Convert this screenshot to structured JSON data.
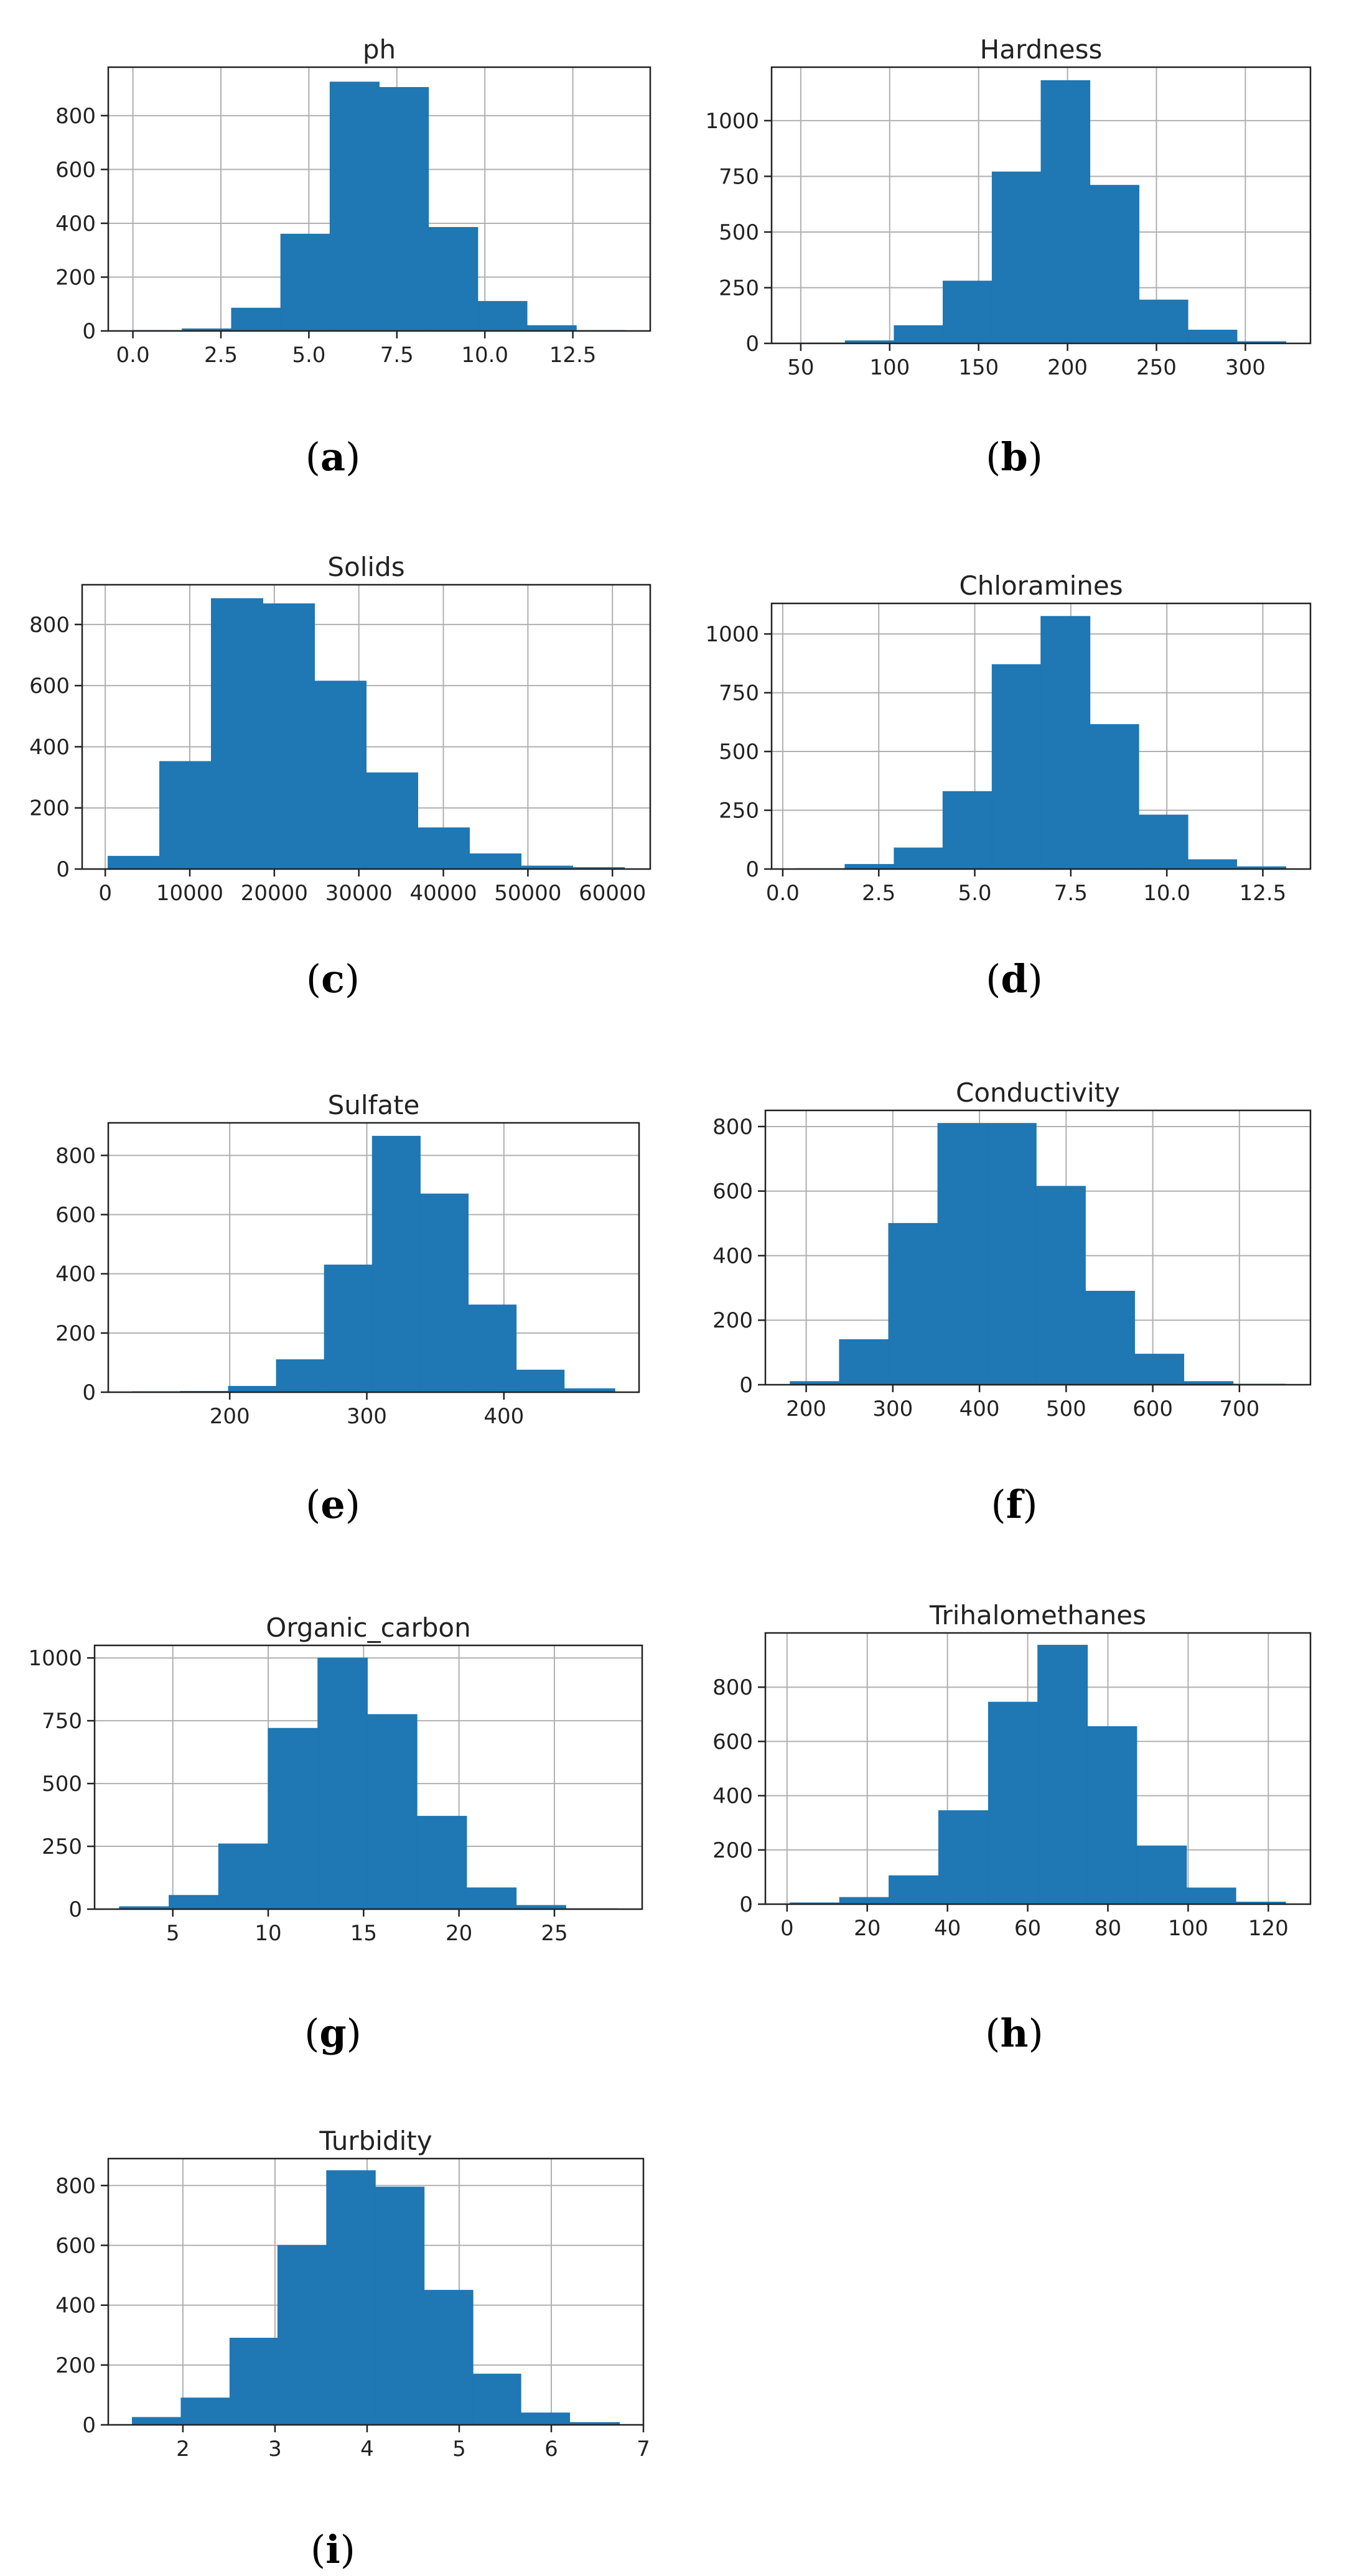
{
  "figure": {
    "background": "#ffffff",
    "bar_color": "#1f77b4"
  },
  "chart_data": [
    {
      "id": "ph",
      "type": "bar",
      "title": "ph",
      "label": "(a)",
      "label_letter": "a",
      "bin_edges": [
        0,
        1.4,
        2.8,
        4.2,
        5.6,
        7.0,
        8.4,
        9.8,
        11.2,
        12.6,
        14.0
      ],
      "values": [
        2,
        8,
        85,
        360,
        925,
        905,
        385,
        110,
        20,
        2
      ],
      "xlim": [
        -0.7,
        14.7
      ],
      "ylim": [
        0,
        980
      ],
      "xticks": [
        0,
        2.5,
        5,
        7.5,
        10,
        12.5
      ],
      "xtick_labels": [
        "0.0",
        "2.5",
        "5.0",
        "7.5",
        "10.0",
        "12.5"
      ],
      "yticks": [
        0,
        200,
        400,
        600,
        800
      ],
      "ytick_labels": [
        "0",
        "200",
        "400",
        "600",
        "800"
      ]
    },
    {
      "id": "hardness",
      "type": "bar",
      "title": "Hardness",
      "label": "(b)",
      "label_letter": "b",
      "bin_edges": [
        47.4,
        75,
        102.5,
        130,
        157.6,
        185.1,
        212.6,
        240.2,
        267.7,
        295.3,
        322.8
      ],
      "values": [
        2,
        12,
        80,
        280,
        770,
        1180,
        710,
        195,
        60,
        8
      ],
      "xlim": [
        33.6,
        336.6
      ],
      "ylim": [
        0,
        1240
      ],
      "xticks": [
        50,
        100,
        150,
        200,
        250,
        300
      ],
      "xtick_labels": [
        "50",
        "100",
        "150",
        "200",
        "250",
        "300"
      ],
      "yticks": [
        0,
        250,
        500,
        750,
        1000
      ],
      "ytick_labels": [
        "0",
        "250",
        "500",
        "750",
        "1000"
      ]
    },
    {
      "id": "solids",
      "type": "bar",
      "title": "Solids",
      "label": "(c)",
      "label_letter": "c",
      "bin_edges": [
        320,
        6430,
        12540,
        18650,
        24760,
        30870,
        36980,
        43090,
        49200,
        55310,
        61420
      ],
      "values": [
        42,
        352,
        885,
        868,
        615,
        315,
        135,
        50,
        10,
        5
      ],
      "xlim": [
        -2735,
        64475
      ],
      "ylim": [
        0,
        930
      ],
      "xticks": [
        0,
        10000,
        20000,
        30000,
        40000,
        50000,
        60000
      ],
      "xtick_labels": [
        "0",
        "10000",
        "20000",
        "30000",
        "40000",
        "50000",
        "60000"
      ],
      "yticks": [
        0,
        200,
        400,
        600,
        800
      ],
      "ytick_labels": [
        "0",
        "200",
        "400",
        "600",
        "800"
      ]
    },
    {
      "id": "chloramines",
      "type": "bar",
      "title": "Chloramines",
      "label": "(d)",
      "label_letter": "d",
      "bin_edges": [
        0.35,
        1.62,
        2.9,
        4.17,
        5.45,
        6.72,
        8.0,
        9.27,
        10.55,
        11.82,
        13.1
      ],
      "values": [
        2,
        20,
        90,
        330,
        870,
        1075,
        615,
        230,
        40,
        10
      ],
      "xlim": [
        -0.29,
        13.74
      ],
      "ylim": [
        0,
        1130
      ],
      "xticks": [
        0,
        2.5,
        5,
        7.5,
        10,
        12.5
      ],
      "xtick_labels": [
        "0.0",
        "2.5",
        "5.0",
        "7.5",
        "10.0",
        "12.5"
      ],
      "yticks": [
        0,
        250,
        500,
        750,
        1000
      ],
      "ytick_labels": [
        "0",
        "250",
        "500",
        "750",
        "1000"
      ]
    },
    {
      "id": "sulfate",
      "type": "bar",
      "title": "Sulfate",
      "label": "(e)",
      "label_letter": "e",
      "bin_edges": [
        129,
        164,
        199,
        234,
        269,
        304,
        339,
        374,
        409,
        444,
        481
      ],
      "values": [
        2,
        3,
        20,
        110,
        430,
        865,
        670,
        295,
        75,
        12
      ],
      "xlim": [
        111.4,
        498.6
      ],
      "ylim": [
        0,
        910
      ],
      "xticks": [
        200,
        300,
        400
      ],
      "xtick_labels": [
        "200",
        "300",
        "400"
      ],
      "yticks": [
        0,
        200,
        400,
        600,
        800
      ],
      "ytick_labels": [
        "0",
        "200",
        "400",
        "600",
        "800"
      ]
    },
    {
      "id": "conductivity",
      "type": "bar",
      "title": "Conductivity",
      "label": "(f)",
      "label_letter": "f",
      "bin_edges": [
        181.5,
        238.3,
        295.1,
        351.9,
        408.7,
        465.5,
        522.3,
        579.1,
        635.9,
        692.7,
        753.3
      ],
      "values": [
        10,
        140,
        500,
        810,
        810,
        615,
        290,
        95,
        10,
        2
      ],
      "xlim": [
        152.9,
        782
      ],
      "ylim": [
        0,
        850
      ],
      "xticks": [
        200,
        300,
        400,
        500,
        600,
        700
      ],
      "xtick_labels": [
        "200",
        "300",
        "400",
        "500",
        "600",
        "700"
      ],
      "yticks": [
        0,
        200,
        400,
        600,
        800
      ],
      "ytick_labels": [
        "0",
        "200",
        "400",
        "600",
        "800"
      ]
    },
    {
      "id": "organic_carbon",
      "type": "bar",
      "title": "Organic_carbon",
      "label": "(g)",
      "label_letter": "g",
      "bin_edges": [
        2.2,
        4.8,
        7.4,
        10.0,
        12.6,
        15.2,
        17.8,
        20.4,
        23.0,
        25.6,
        28.3
      ],
      "values": [
        10,
        55,
        260,
        720,
        1000,
        775,
        370,
        85,
        15,
        2
      ],
      "xlim": [
        0.9,
        29.6
      ],
      "ylim": [
        0,
        1050
      ],
      "xticks": [
        5,
        10,
        15,
        20,
        25
      ],
      "xtick_labels": [
        "5",
        "10",
        "15",
        "20",
        "25"
      ],
      "yticks": [
        0,
        250,
        500,
        750,
        1000
      ],
      "ytick_labels": [
        "0",
        "250",
        "500",
        "750",
        "1000"
      ]
    },
    {
      "id": "trihalomethanes",
      "type": "bar",
      "title": "Trihalomethanes",
      "label": "(h)",
      "label_letter": "h",
      "bin_edges": [
        0.74,
        13.1,
        25.4,
        37.8,
        50.2,
        62.5,
        74.9,
        87.2,
        99.6,
        111.9,
        124.3
      ],
      "values": [
        5,
        25,
        105,
        345,
        745,
        955,
        655,
        215,
        60,
        8
      ],
      "xlim": [
        -5.4,
        130.5
      ],
      "ylim": [
        0,
        1000
      ],
      "xticks": [
        0,
        20,
        40,
        60,
        80,
        100,
        120
      ],
      "xtick_labels": [
        "0",
        "20",
        "40",
        "60",
        "80",
        "100",
        "120"
      ],
      "yticks": [
        0,
        200,
        400,
        600,
        800
      ],
      "ytick_labels": [
        "0",
        "200",
        "400",
        "600",
        "800"
      ]
    },
    {
      "id": "turbidity",
      "type": "bar",
      "title": "Turbidity",
      "label": "(i)",
      "label_letter": "i",
      "bin_edges": [
        1.45,
        1.98,
        2.51,
        3.03,
        3.56,
        4.09,
        4.62,
        5.15,
        5.67,
        6.2,
        6.74
      ],
      "values": [
        25,
        90,
        290,
        600,
        850,
        795,
        450,
        170,
        40,
        8
      ],
      "xlim": [
        1.19,
        7.0
      ],
      "ylim": [
        0,
        890
      ],
      "xticks": [
        2,
        3,
        4,
        5,
        6,
        7
      ],
      "xtick_labels": [
        "2",
        "3",
        "4",
        "5",
        "6",
        "7"
      ],
      "yticks": [
        0,
        200,
        400,
        600,
        800
      ],
      "ytick_labels": [
        "0",
        "200",
        "400",
        "600",
        "800"
      ]
    }
  ]
}
